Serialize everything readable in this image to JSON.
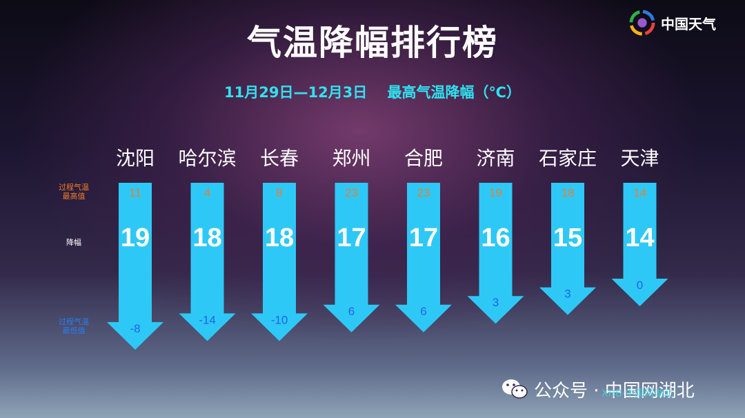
{
  "header": {
    "title": "气温降幅排行榜",
    "subtitle": "11月29日—12月3日    最高气温降幅（℃）",
    "logo_text": "中国天气"
  },
  "row_labels": {
    "high": [
      "过程气温",
      "最高值"
    ],
    "drop": "降幅",
    "low": [
      "过程气温",
      "最低值"
    ]
  },
  "chart_data": {
    "type": "bar",
    "orientation": "down-arrows",
    "categories": [
      "沈阳",
      "哈尔滨",
      "长春",
      "郑州",
      "合肥",
      "济南",
      "石家庄",
      "天津"
    ],
    "series": [
      {
        "name": "过程气温最高值",
        "values": [
          11,
          4,
          8,
          23,
          23,
          19,
          18,
          14
        ]
      },
      {
        "name": "降幅",
        "values": [
          19,
          18,
          18,
          17,
          17,
          16,
          15,
          14
        ]
      },
      {
        "name": "过程气温最低值",
        "values": [
          "-8",
          "-14",
          "-10",
          "6",
          "6",
          "3",
          "3",
          "0"
        ]
      }
    ],
    "colors": {
      "arrow": "#2ec8f7",
      "high": "#f07b2a",
      "drop": "#ffffff",
      "low": "#1f63e8"
    }
  },
  "watermark": {
    "text": "公众号 · 中国网湖北",
    "overlay": "XHB·中国网湖北"
  }
}
